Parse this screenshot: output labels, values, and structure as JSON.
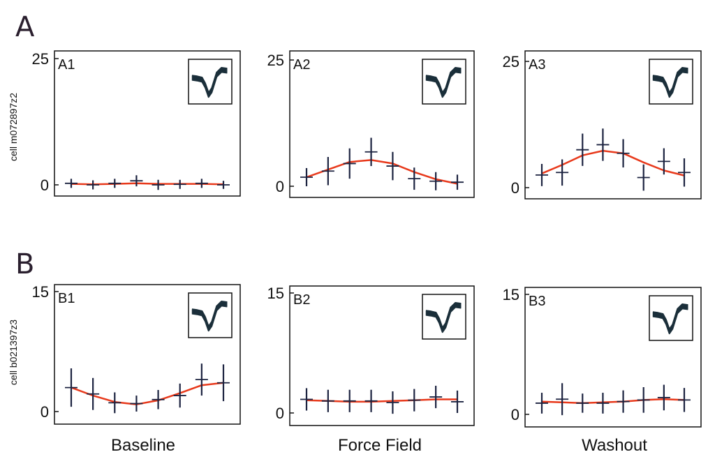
{
  "figure": {
    "section_labels": [
      "A",
      "B"
    ],
    "column_labels": [
      "Baseline",
      "Force Field",
      "Washout"
    ],
    "row_ylabels": [
      "cell m072897z2",
      "cell b021397z3"
    ]
  },
  "colors": {
    "fit_line": "#e8391b",
    "data_marks": "#1c2340",
    "axes": "#111111",
    "waveform": "#1b2f3a"
  },
  "chart_data": [
    {
      "type": "line",
      "panel_label": "A1",
      "ylim": [
        0,
        25
      ],
      "yticks": [
        "0",
        "25"
      ],
      "x": [
        1,
        2,
        3,
        4,
        5,
        6,
        7,
        8
      ],
      "means": [
        0.3,
        0.0,
        0.3,
        0.8,
        0.0,
        0.1,
        0.3,
        0.0
      ],
      "err": [
        0.9,
        0.9,
        0.9,
        1.1,
        1.0,
        0.9,
        0.9,
        0.8
      ],
      "fit": [
        0.2,
        0.1,
        0.2,
        0.3,
        0.2,
        0.2,
        0.2,
        0.1
      ]
    },
    {
      "type": "line",
      "panel_label": "A2",
      "ylim": [
        0,
        25
      ],
      "yticks": [
        "0",
        "25"
      ],
      "x": [
        1,
        2,
        3,
        4,
        5,
        6,
        7,
        8
      ],
      "means": [
        1.8,
        3.0,
        4.5,
        6.8,
        4.0,
        1.5,
        1.0,
        0.8
      ],
      "err": [
        1.8,
        2.8,
        3.0,
        2.8,
        2.8,
        2.2,
        1.8,
        1.5
      ],
      "fit": [
        1.8,
        3.3,
        4.8,
        5.2,
        4.5,
        2.8,
        1.4,
        0.5
      ]
    },
    {
      "type": "line",
      "panel_label": "A3",
      "ylim": [
        0,
        25
      ],
      "yticks": [
        "0",
        "25"
      ],
      "x": [
        1,
        2,
        3,
        4,
        5,
        6,
        7,
        8
      ],
      "means": [
        2.5,
        3.0,
        7.5,
        8.5,
        6.8,
        2.0,
        5.2,
        3.0
      ],
      "err": [
        2.2,
        2.6,
        3.2,
        3.2,
        2.8,
        2.6,
        2.6,
        2.8
      ],
      "fit": [
        2.8,
        4.5,
        6.4,
        7.3,
        6.8,
        5.0,
        3.4,
        2.4
      ]
    },
    {
      "type": "line",
      "panel_label": "B1",
      "ylim": [
        0,
        15
      ],
      "yticks": [
        "0",
        "15"
      ],
      "x": [
        1,
        2,
        3,
        4,
        5,
        6,
        7,
        8
      ],
      "means": [
        3.0,
        2.2,
        1.1,
        1.0,
        1.5,
        2.0,
        4.0,
        3.6
      ],
      "err": [
        2.4,
        2.0,
        1.3,
        1.0,
        1.2,
        1.5,
        2.0,
        2.3
      ],
      "fit": [
        3.0,
        2.0,
        1.2,
        0.9,
        1.4,
        2.3,
        3.3,
        3.6
      ]
    },
    {
      "type": "line",
      "panel_label": "B2",
      "ylim": [
        0,
        15
      ],
      "yticks": [
        "0",
        "15"
      ],
      "x": [
        1,
        2,
        3,
        4,
        5,
        6,
        7,
        8
      ],
      "means": [
        1.7,
        1.5,
        1.5,
        1.5,
        1.3,
        1.6,
        2.0,
        1.4
      ],
      "err": [
        1.4,
        1.4,
        1.4,
        1.4,
        1.4,
        1.4,
        1.4,
        1.4
      ],
      "fit": [
        1.6,
        1.5,
        1.4,
        1.4,
        1.5,
        1.6,
        1.7,
        1.7
      ]
    },
    {
      "type": "line",
      "panel_label": "B3",
      "ylim": [
        0,
        15
      ],
      "yticks": [
        "0",
        "15"
      ],
      "x": [
        1,
        2,
        3,
        4,
        5,
        6,
        7,
        8
      ],
      "means": [
        1.4,
        1.9,
        1.4,
        1.4,
        1.6,
        1.8,
        2.1,
        1.8
      ],
      "err": [
        1.3,
        2.0,
        1.2,
        1.3,
        1.4,
        1.6,
        1.6,
        1.5
      ],
      "fit": [
        1.6,
        1.5,
        1.4,
        1.5,
        1.6,
        1.8,
        1.9,
        1.8
      ]
    }
  ]
}
